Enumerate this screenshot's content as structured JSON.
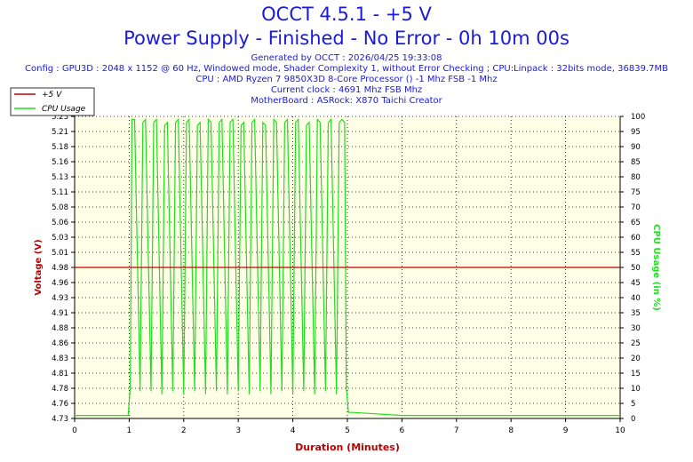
{
  "header": {
    "title": "OCCT 4.5.1 - +5 V",
    "subtitle": "Power Supply - Finished - No Error - 0h 10m 00s",
    "lines": [
      "Generated by OCCT : 2026/04/25 19:33:08",
      "Config : GPU3D : 2048 x 1152 @ 60 Hz, Windowed mode, Shader Complexity 1, without Error Checking ; CPU:Linpack : 32bits mode, 36839.7MB",
      "CPU : AMD Ryzen 7 9850X3D 8-Core Processor () -1 Mhz FSB -1 Mhz",
      "Current clock : 4691 Mhz FSB  Mhz",
      "MotherBoard : ASRock: X870 Taichi Creator"
    ]
  },
  "colors": {
    "voltage": "#c00000",
    "cpu": "#22dd22",
    "plot_bg": "#ffffe8",
    "title": "#1a1adb",
    "xlabel": "#c00000"
  },
  "chart_data": {
    "type": "line",
    "xlabel": "Duration (Minutes)",
    "ylabel_left": "Voltage (V)",
    "ylabel_right": "CPU Usage (in %)",
    "xlim": [
      0,
      10
    ],
    "ylim_left": [
      4.73,
      5.23
    ],
    "ylim_right": [
      0,
      100
    ],
    "x_ticks": [
      "0",
      "1",
      "2",
      "3",
      "4",
      "5",
      "6",
      "7",
      "8",
      "9",
      "10"
    ],
    "y_left_ticks": [
      "4.73",
      "4.76",
      "4.78",
      "4.81",
      "4.83",
      "4.86",
      "4.88",
      "4.91",
      "4.93",
      "4.96",
      "4.98",
      "5.01",
      "5.03",
      "5.06",
      "5.08",
      "5.11",
      "5.13",
      "5.16",
      "5.18",
      "5.21",
      "5.23"
    ],
    "y_right_ticks": [
      "0",
      "5",
      "10",
      "15",
      "20",
      "25",
      "30",
      "35",
      "40",
      "45",
      "50",
      "55",
      "60",
      "65",
      "70",
      "75",
      "80",
      "85",
      "90",
      "95",
      "100"
    ],
    "grid": true,
    "legend_position": "top-left",
    "series": [
      {
        "name": "+5 V",
        "axis": "left",
        "x": [
          0,
          10
        ],
        "y": [
          4.98,
          4.98
        ]
      },
      {
        "name": "CPU Usage",
        "axis": "right",
        "x": [
          0,
          0.5,
          0.98,
          1.02,
          1.05,
          1.1,
          1.2,
          1.25,
          1.3,
          1.4,
          1.45,
          1.5,
          1.6,
          1.65,
          1.7,
          1.8,
          1.85,
          1.9,
          2.0,
          2.05,
          2.1,
          2.2,
          2.25,
          2.3,
          2.4,
          2.45,
          2.5,
          2.6,
          2.65,
          2.7,
          2.8,
          2.85,
          2.9,
          3.0,
          3.05,
          3.1,
          3.2,
          3.25,
          3.3,
          3.4,
          3.45,
          3.5,
          3.6,
          3.65,
          3.7,
          3.8,
          3.85,
          3.9,
          4.0,
          4.05,
          4.1,
          4.2,
          4.25,
          4.3,
          4.4,
          4.45,
          4.5,
          4.6,
          4.65,
          4.7,
          4.8,
          4.85,
          4.9,
          4.95,
          4.98,
          5.02,
          5.1,
          6,
          7,
          8,
          9,
          10
        ],
        "y": [
          1,
          1,
          1,
          10,
          99,
          99,
          9,
          98,
          99,
          9,
          98,
          99,
          8,
          97,
          98,
          9,
          98,
          99,
          8,
          98,
          99,
          9,
          97,
          98,
          8,
          99,
          98,
          9,
          98,
          99,
          8,
          98,
          99,
          9,
          97,
          98,
          8,
          98,
          99,
          9,
          98,
          97,
          8,
          99,
          98,
          9,
          98,
          99,
          8,
          98,
          99,
          9,
          97,
          98,
          8,
          99,
          98,
          9,
          98,
          99,
          8,
          98,
          99,
          98,
          10,
          2,
          2,
          1,
          1,
          1,
          1,
          1
        ]
      }
    ]
  }
}
